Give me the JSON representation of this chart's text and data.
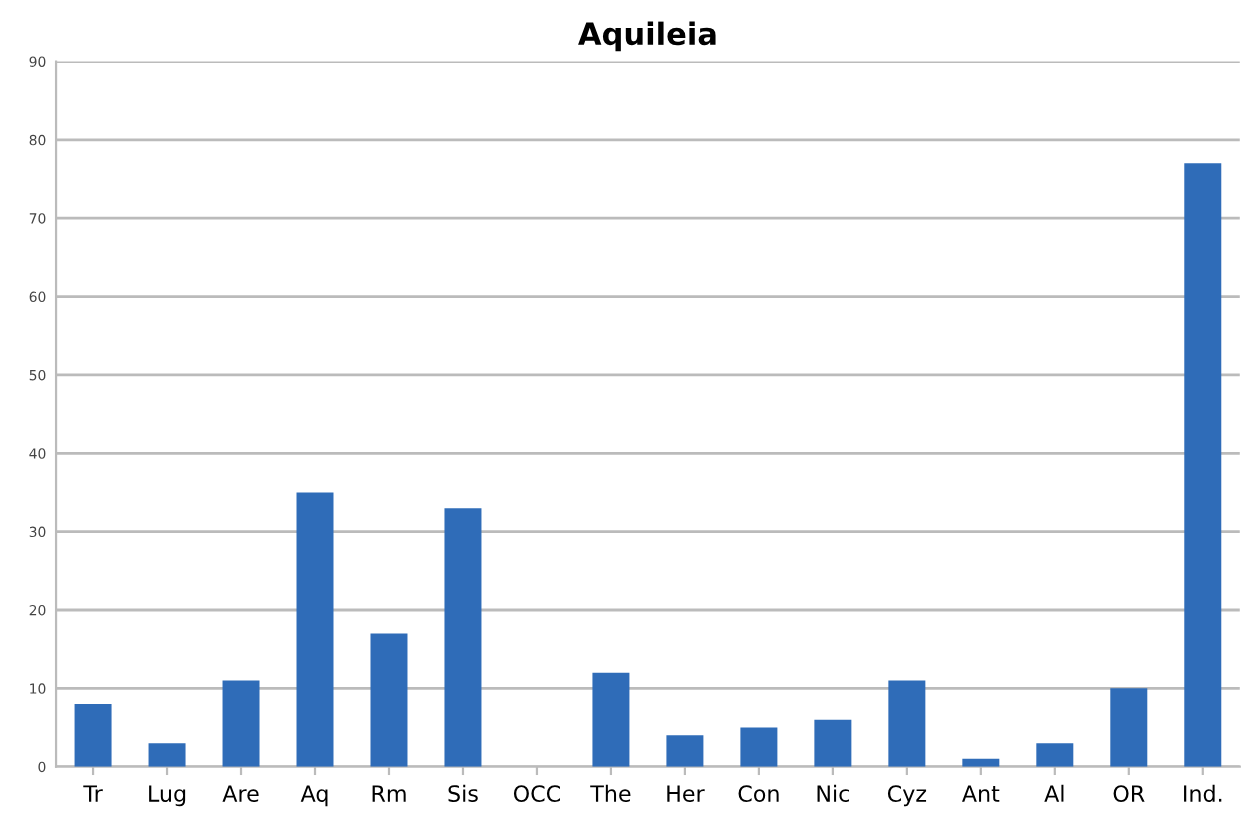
{
  "chart_data": {
    "type": "bar",
    "title": "Aquileia",
    "categories": [
      "Tr",
      "Lug",
      "Are",
      "Aq",
      "Rm",
      "Sis",
      "OCC",
      "The",
      "Her",
      "Con",
      "Nic",
      "Cyz",
      "Ant",
      "Al",
      "OR",
      "Ind."
    ],
    "values": [
      8,
      3,
      11,
      35,
      17,
      33,
      0,
      12,
      4,
      5,
      6,
      11,
      1,
      3,
      10,
      77
    ],
    "color": "#2f6cb8",
    "ylim": [
      0,
      90
    ],
    "yticks": [
      0,
      10,
      20,
      30,
      40,
      50,
      60,
      70,
      80,
      90
    ],
    "grid": "y",
    "legend": false
  }
}
